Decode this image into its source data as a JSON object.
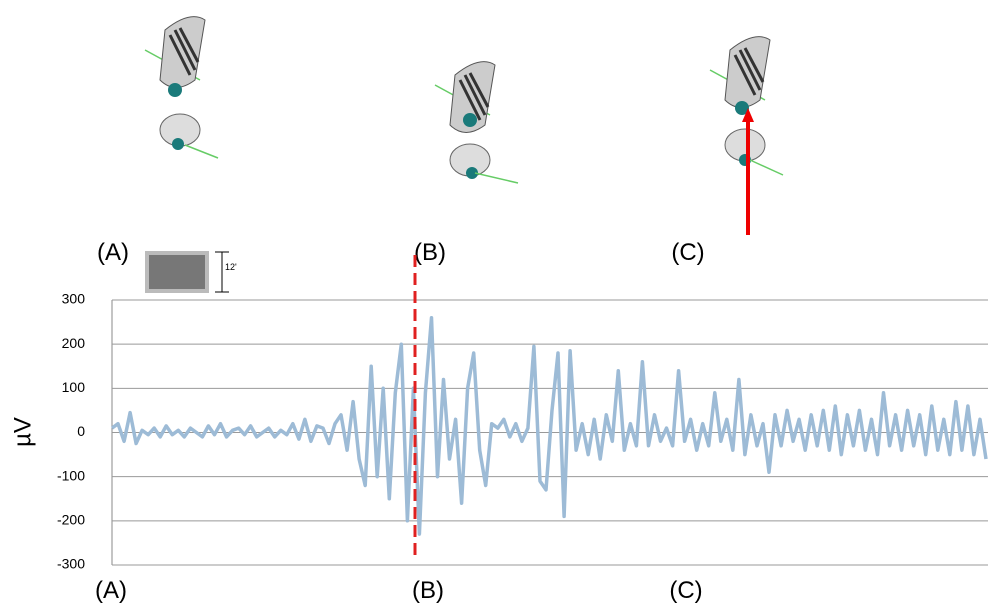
{
  "chart_data": {
    "type": "line",
    "y_label": "µV",
    "top_labels": [
      "(A)",
      "(B)",
      "(C)"
    ],
    "bottom_labels": [
      "(A)",
      "(B)",
      "(C)"
    ],
    "scale_label": "12'",
    "ylim": [
      -300,
      300
    ],
    "yticks": [
      300,
      200,
      100,
      0,
      -100,
      -200,
      -300
    ],
    "grid": true,
    "series": [
      {
        "color": "#9dbbd6",
        "values": [
          10,
          20,
          -20,
          45,
          -25,
          5,
          -5,
          10,
          -10,
          15,
          -5,
          5,
          -10,
          10,
          0,
          -10,
          15,
          -5,
          20,
          -10,
          5,
          10,
          -5,
          15,
          -10,
          0,
          10,
          -10,
          5,
          -5,
          20,
          -15,
          30,
          -20,
          15,
          10,
          -25,
          20,
          40,
          -40,
          70,
          -60,
          -120,
          150,
          -100,
          100,
          -150,
          90,
          200,
          -200,
          100,
          -230,
          90,
          260,
          -100,
          120,
          -60,
          30,
          -160,
          100,
          180,
          -40,
          -120,
          20,
          10,
          30,
          -10,
          20,
          -20,
          10,
          195,
          -110,
          -130,
          50,
          180,
          -190,
          185,
          -40,
          20,
          -50,
          30,
          -60,
          40,
          -20,
          140,
          -40,
          20,
          -30,
          160,
          -30,
          40,
          -20,
          10,
          -30,
          140,
          -20,
          30,
          -40,
          20,
          -30,
          90,
          -20,
          30,
          -40,
          120,
          -50,
          40,
          -30,
          20,
          -90,
          40,
          -30,
          50,
          -20,
          30,
          -40,
          40,
          -30,
          50,
          -40,
          60,
          -50,
          40,
          -30,
          50,
          -40,
          30,
          -50,
          90,
          -30,
          40,
          -40,
          50,
          -30,
          40,
          -50,
          60,
          -40,
          30,
          -50,
          70,
          -40,
          60,
          -50,
          30,
          -60
        ]
      }
    ]
  }
}
